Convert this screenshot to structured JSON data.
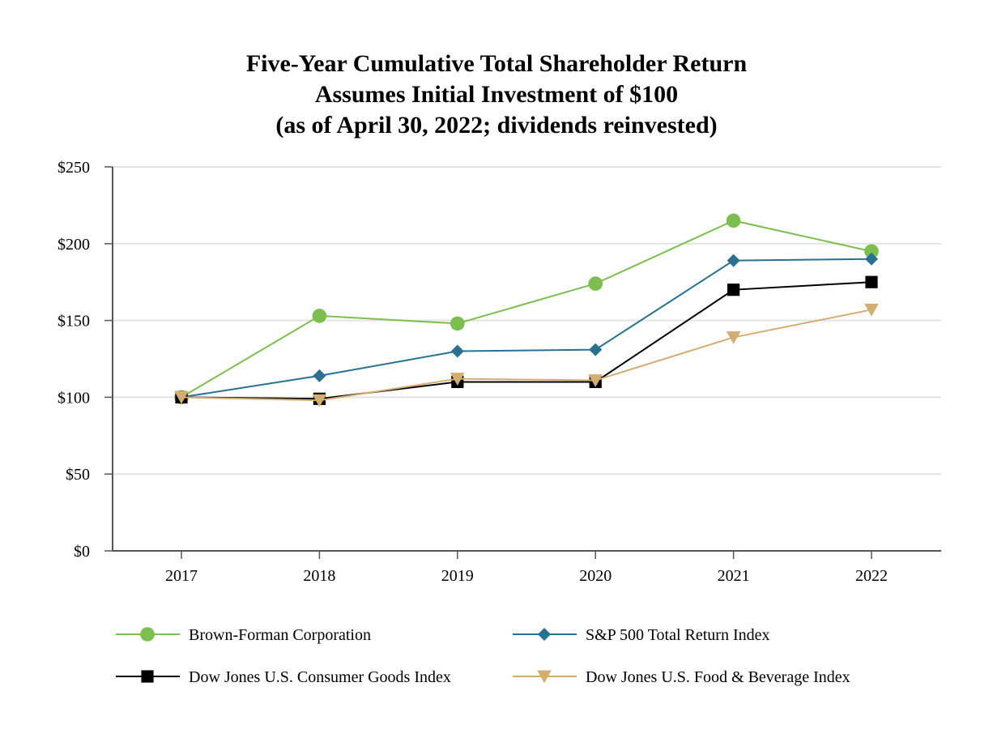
{
  "chart_data": {
    "type": "line",
    "title_lines": [
      "Five-Year Cumulative Total Shareholder Return",
      "Assumes Initial Investment of $100",
      "(as of April 30, 2022; dividends reinvested)"
    ],
    "categories": [
      "2017",
      "2018",
      "2019",
      "2020",
      "2021",
      "2022"
    ],
    "ylim": [
      0,
      250
    ],
    "yticks": [
      0,
      50,
      100,
      150,
      200,
      250
    ],
    "ytick_labels": [
      "$0",
      "$50",
      "$100",
      "$150",
      "$200",
      "$250"
    ],
    "grid": true,
    "xlabel": "",
    "ylabel": "",
    "legend_position": "bottom",
    "series": [
      {
        "name": "Brown-Forman Corporation",
        "color": "#7dbf4e",
        "marker": "circle",
        "values": [
          100,
          153,
          148,
          174,
          215,
          195
        ]
      },
      {
        "name": "S&P 500 Total Return Index",
        "color": "#2a7190",
        "marker": "diamond",
        "values": [
          100,
          114,
          130,
          131,
          189,
          190
        ]
      },
      {
        "name": "Dow Jones U.S. Consumer Goods Index",
        "color": "#000000",
        "marker": "square",
        "values": [
          100,
          99,
          110,
          110,
          170,
          175
        ]
      },
      {
        "name": "Dow Jones U.S. Food & Beverage Index",
        "color": "#d3ad72",
        "marker": "triangle-down",
        "values": [
          100,
          98,
          112,
          111,
          139,
          157
        ]
      }
    ]
  }
}
